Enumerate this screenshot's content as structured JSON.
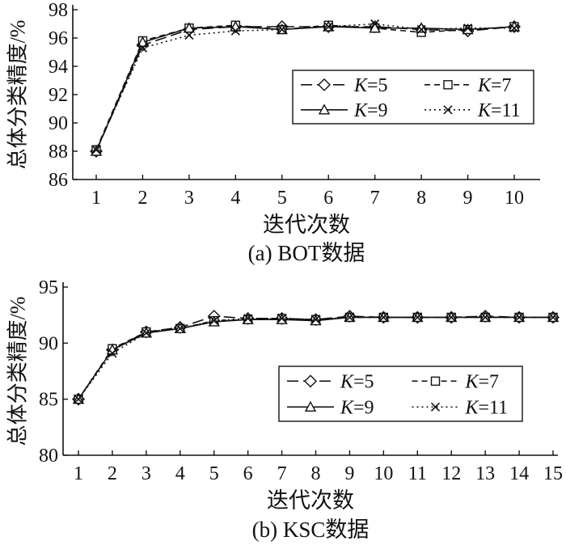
{
  "chart_data": [
    {
      "type": "line",
      "ylabel": "总体分类精度/%",
      "xlabel": "迭代次数",
      "caption": "(a) BOT数据",
      "x": [
        1,
        2,
        3,
        4,
        5,
        6,
        7,
        8,
        9,
        10
      ],
      "xticks": [
        "1",
        "2",
        "3",
        "4",
        "5",
        "6",
        "7",
        "8",
        "9",
        "10"
      ],
      "ylim": [
        86,
        98
      ],
      "yticks": [
        "86",
        "88",
        "90",
        "92",
        "94",
        "96",
        "98"
      ],
      "legend_position": "center-right",
      "series": [
        {
          "name": "K=5",
          "k": "5",
          "values": [
            88.0,
            95.5,
            96.6,
            96.8,
            96.8,
            96.8,
            96.8,
            96.6,
            96.5,
            96.8
          ]
        },
        {
          "name": "K=7",
          "k": "7",
          "values": [
            88.1,
            95.8,
            96.7,
            96.9,
            96.6,
            96.9,
            96.7,
            96.4,
            96.6,
            96.8
          ]
        },
        {
          "name": "K=9",
          "k": "9",
          "values": [
            88.0,
            95.7,
            96.7,
            96.8,
            96.6,
            96.8,
            96.7,
            96.7,
            96.6,
            96.8
          ]
        },
        {
          "name": "K=11",
          "k": "11",
          "values": [
            88.1,
            95.3,
            96.2,
            96.5,
            96.6,
            96.8,
            97.0,
            96.6,
            96.7,
            96.7
          ]
        }
      ]
    },
    {
      "type": "line",
      "ylabel": "总体分类精度/%",
      "xlabel": "迭代次数",
      "caption": "(b) KSC数据",
      "x": [
        1,
        2,
        3,
        4,
        5,
        6,
        7,
        8,
        9,
        10,
        11,
        12,
        13,
        14,
        15
      ],
      "xticks": [
        "1",
        "2",
        "3",
        "4",
        "5",
        "6",
        "7",
        "8",
        "9",
        "10",
        "11",
        "12",
        "13",
        "14",
        "15"
      ],
      "ylim": [
        80,
        95
      ],
      "yticks": [
        "80",
        "85",
        "90",
        "95"
      ],
      "legend_position": "center-right",
      "series": [
        {
          "name": "K=5",
          "k": "5",
          "values": [
            85.0,
            89.4,
            91.0,
            91.4,
            92.4,
            92.2,
            92.2,
            92.1,
            92.4,
            92.3,
            92.3,
            92.3,
            92.4,
            92.3,
            92.3
          ]
        },
        {
          "name": "K=7",
          "k": "7",
          "values": [
            85.0,
            89.5,
            91.0,
            91.3,
            92.0,
            92.1,
            92.2,
            92.1,
            92.3,
            92.3,
            92.3,
            92.3,
            92.3,
            92.3,
            92.3
          ]
        },
        {
          "name": "K=9",
          "k": "9",
          "values": [
            85.0,
            89.4,
            90.9,
            91.3,
            91.9,
            92.1,
            92.1,
            92.0,
            92.3,
            92.3,
            92.3,
            92.3,
            92.3,
            92.3,
            92.3
          ]
        },
        {
          "name": "K=11",
          "k": "11",
          "values": [
            85.0,
            89.1,
            90.9,
            91.3,
            92.0,
            92.2,
            92.2,
            92.1,
            92.3,
            92.3,
            92.3,
            92.3,
            92.3,
            92.3,
            92.3
          ]
        }
      ]
    }
  ]
}
